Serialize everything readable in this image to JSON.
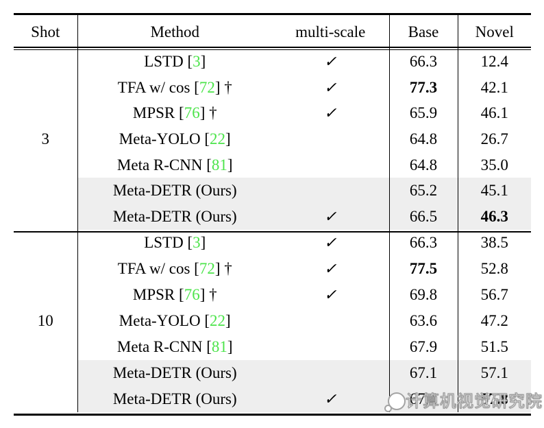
{
  "colors": {
    "cite-green": "#4ce44a",
    "row-highlight": "#eeeeee",
    "rule-black": "#000000",
    "watermark-gray": "#9a9a9a"
  },
  "glyphs": {
    "check": "✓"
  },
  "table": {
    "headers": {
      "shot": "Shot",
      "method": "Method",
      "multi_scale": "multi-scale",
      "base": "Base",
      "novel": "Novel"
    },
    "blocks": [
      {
        "shot": "3",
        "rows": [
          {
            "m_pre": "LSTD [",
            "cite": "3",
            "m_post": "]",
            "multi_scale": true,
            "base": "66.3",
            "novel": "12.4",
            "base_bold": false,
            "novel_bold": false,
            "highlight": false
          },
          {
            "m_pre": "TFA w/ cos [",
            "cite": "72",
            "m_post": "] †",
            "multi_scale": true,
            "base": "77.3",
            "novel": "42.1",
            "base_bold": true,
            "novel_bold": false,
            "highlight": false
          },
          {
            "m_pre": "MPSR [",
            "cite": "76",
            "m_post": "] †",
            "multi_scale": true,
            "base": "65.9",
            "novel": "46.1",
            "base_bold": false,
            "novel_bold": false,
            "highlight": false
          },
          {
            "m_pre": "Meta-YOLO [",
            "cite": "22",
            "m_post": "]",
            "multi_scale": false,
            "base": "64.8",
            "novel": "26.7",
            "base_bold": false,
            "novel_bold": false,
            "highlight": false
          },
          {
            "m_pre": "Meta R-CNN [",
            "cite": "81",
            "m_post": "]",
            "multi_scale": false,
            "base": "64.8",
            "novel": "35.0",
            "base_bold": false,
            "novel_bold": false,
            "highlight": false
          },
          {
            "m_pre": "Meta-DETR (Ours)",
            "cite": "",
            "m_post": "",
            "multi_scale": false,
            "base": "65.2",
            "novel": "45.1",
            "base_bold": false,
            "novel_bold": false,
            "highlight": true
          },
          {
            "m_pre": "Meta-DETR (Ours)",
            "cite": "",
            "m_post": "",
            "multi_scale": true,
            "base": "66.5",
            "novel": "46.3",
            "base_bold": false,
            "novel_bold": true,
            "highlight": true
          }
        ]
      },
      {
        "shot": "10",
        "rows": [
          {
            "m_pre": "LSTD [",
            "cite": "3",
            "m_post": "]",
            "multi_scale": true,
            "base": "66.3",
            "novel": "38.5",
            "base_bold": false,
            "novel_bold": false,
            "highlight": false
          },
          {
            "m_pre": "TFA w/ cos [",
            "cite": "72",
            "m_post": "] †",
            "multi_scale": true,
            "base": "77.5",
            "novel": "52.8",
            "base_bold": true,
            "novel_bold": false,
            "highlight": false
          },
          {
            "m_pre": "MPSR [",
            "cite": "76",
            "m_post": "] †",
            "multi_scale": true,
            "base": "69.8",
            "novel": "56.7",
            "base_bold": false,
            "novel_bold": false,
            "highlight": false
          },
          {
            "m_pre": "Meta-YOLO [",
            "cite": "22",
            "m_post": "]",
            "multi_scale": false,
            "base": "63.6",
            "novel": "47.2",
            "base_bold": false,
            "novel_bold": false,
            "highlight": false
          },
          {
            "m_pre": "Meta R-CNN [",
            "cite": "81",
            "m_post": "]",
            "multi_scale": false,
            "base": "67.9",
            "novel": "51.5",
            "base_bold": false,
            "novel_bold": false,
            "highlight": false
          },
          {
            "m_pre": "Meta-DETR (Ours)",
            "cite": "",
            "m_post": "",
            "multi_scale": false,
            "base": "67.1",
            "novel": "57.1",
            "base_bold": false,
            "novel_bold": false,
            "highlight": true
          },
          {
            "m_pre": "Meta-DETR (Ours)",
            "cite": "",
            "m_post": "",
            "multi_scale": true,
            "base": "67.4",
            "novel": "57.8",
            "base_bold": false,
            "novel_bold": true,
            "highlight": true
          }
        ]
      }
    ]
  },
  "watermark": {
    "text": "计算机视觉研究院"
  }
}
